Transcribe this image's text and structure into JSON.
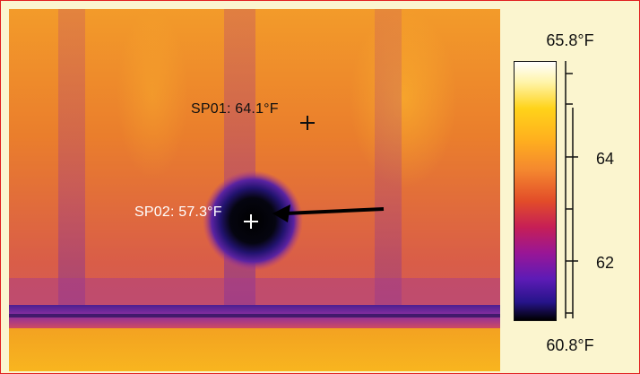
{
  "thermal_image": {
    "description": "",
    "spots": [
      {
        "label": "SP01: 64.1°F",
        "marker": "crosshair-icon"
      },
      {
        "label": "SP02: 57.3°F",
        "marker": "crosshair-icon"
      }
    ],
    "arrow": "arrow-left-icon"
  },
  "scale": {
    "max": "65.8°F",
    "min": "60.8°F",
    "ticks": [
      "64",
      "62"
    ],
    "colors": {
      "white": "#ffffff",
      "yellow": "#ffd31a",
      "orange": "#f4872f",
      "red": "#e24c29",
      "magenta": "#991696",
      "violet": "#5d1bb6",
      "black": "#000000"
    }
  },
  "frame": {
    "border_color": "#e02020",
    "background_color": "#fbf5cf"
  }
}
